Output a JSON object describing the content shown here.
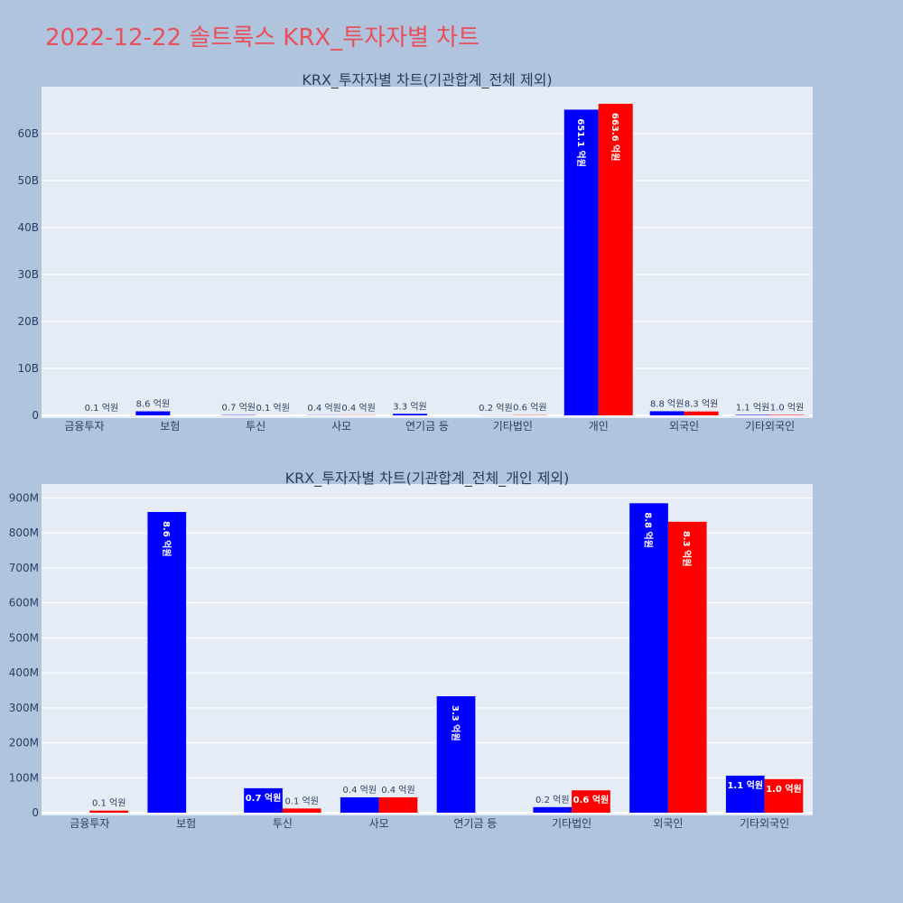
{
  "page_title": "2022-12-22 솔트룩스 KRX_투자자별 차트",
  "colors": {
    "background": "#b0c4de",
    "plot_bg": "#e5ecf6",
    "buy": "#0000ff",
    "sell": "#ff0000",
    "title": "#e8505b"
  },
  "chart_data": [
    {
      "type": "bar",
      "title": "KRX_투자자별 차트(기관합계_전체 제외)",
      "categories": [
        "금융투자",
        "보험",
        "투신",
        "사모",
        "연기금 등",
        "기타법인",
        "개인",
        "외국인",
        "기타외국인"
      ],
      "y_ticks": [
        "0",
        "10B",
        "20B",
        "30B",
        "40B",
        "50B",
        "60B"
      ],
      "ylim": [
        0,
        70000000000
      ],
      "grid": true,
      "series": [
        {
          "color": "#0000ff",
          "values": [
            0,
            860000000,
            70000000,
            40000000,
            330000000,
            20000000,
            65110000000,
            880000000,
            110000000
          ],
          "labels": [
            "",
            "8.6 억원",
            "0.7 억원",
            "0.4 억원",
            "3.3 억원",
            "0.2 억원",
            "651.1 억원",
            "8.8 억원",
            "1.1 억원"
          ]
        },
        {
          "color": "#ff0000",
          "values": [
            10000000,
            0,
            10000000,
            40000000,
            0,
            60000000,
            66360000000,
            830000000,
            100000000
          ],
          "labels": [
            "0.1 억원",
            "",
            "0.1 억원",
            "0.4 억원",
            "",
            "0.6 억원",
            "663.6 억원",
            "8.3 억원",
            "1.0 억원"
          ]
        }
      ]
    },
    {
      "type": "bar",
      "title": "KRX_투자자별 차트(기관합계_전체_개인 제외)",
      "categories": [
        "금융투자",
        "보험",
        "투신",
        "사모",
        "연기금 등",
        "기타법인",
        "외국인",
        "기타외국인"
      ],
      "y_ticks": [
        "0",
        "100M",
        "200M",
        "300M",
        "400M",
        "500M",
        "600M",
        "700M",
        "800M",
        "900M"
      ],
      "ylim": [
        0,
        940000000
      ],
      "grid": true,
      "series": [
        {
          "color": "#0000ff",
          "values": [
            0,
            860000000,
            70000000,
            44000000,
            333000000,
            16000000,
            885000000,
            106000000
          ],
          "labels": [
            "",
            "8.6 억원",
            "0.7 억원",
            "0.4 억원",
            "3.3 억원",
            "0.2 억원",
            "8.8 억원",
            "1.1 억원"
          ]
        },
        {
          "color": "#ff0000",
          "values": [
            6000000,
            0,
            12000000,
            44000000,
            0,
            64000000,
            832000000,
            96000000
          ],
          "labels": [
            "0.1 억원",
            "",
            "0.1 억원",
            "0.4 억원",
            "",
            "0.6 억원",
            "8.3 억원",
            "1.0 억원"
          ]
        }
      ]
    }
  ]
}
